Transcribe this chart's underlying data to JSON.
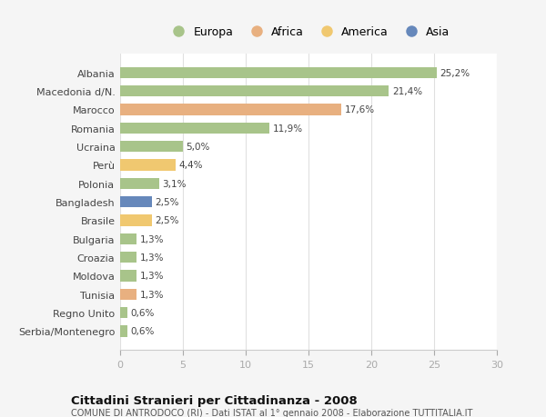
{
  "categories": [
    "Albania",
    "Macedonia d/N.",
    "Marocco",
    "Romania",
    "Ucraina",
    "Perù",
    "Polonia",
    "Bangladesh",
    "Brasile",
    "Bulgaria",
    "Croazia",
    "Moldova",
    "Tunisia",
    "Regno Unito",
    "Serbia/Montenegro"
  ],
  "values": [
    25.2,
    21.4,
    17.6,
    11.9,
    5.0,
    4.4,
    3.1,
    2.5,
    2.5,
    1.3,
    1.3,
    1.3,
    1.3,
    0.6,
    0.6
  ],
  "labels": [
    "25,2%",
    "21,4%",
    "17,6%",
    "11,9%",
    "5,0%",
    "4,4%",
    "3,1%",
    "2,5%",
    "2,5%",
    "1,3%",
    "1,3%",
    "1,3%",
    "1,3%",
    "0,6%",
    "0,6%"
  ],
  "colors": [
    "#a8c48a",
    "#a8c48a",
    "#e8b080",
    "#a8c48a",
    "#a8c48a",
    "#f0c870",
    "#a8c48a",
    "#6688bb",
    "#f0c870",
    "#a8c48a",
    "#a8c48a",
    "#a8c48a",
    "#e8b080",
    "#a8c48a",
    "#a8c48a"
  ],
  "legend_labels": [
    "Europa",
    "Africa",
    "America",
    "Asia"
  ],
  "legend_colors": [
    "#a8c48a",
    "#e8b080",
    "#f0c870",
    "#6688bb"
  ],
  "title": "Cittadini Stranieri per Cittadinanza - 2008",
  "subtitle": "COMUNE DI ANTRODOCO (RI) - Dati ISTAT al 1° gennaio 2008 - Elaborazione TUTTITALIA.IT",
  "xlim": [
    0,
    30
  ],
  "xticks": [
    0,
    5,
    10,
    15,
    20,
    25,
    30
  ],
  "bg_color": "#f5f5f5",
  "plot_bg_color": "#ffffff",
  "grid_color": "#e0e0e0",
  "bar_height": 0.6,
  "label_fontsize": 7.5,
  "tick_fontsize": 8.0,
  "legend_fontsize": 9.0,
  "title_fontsize": 9.5,
  "subtitle_fontsize": 7.0
}
